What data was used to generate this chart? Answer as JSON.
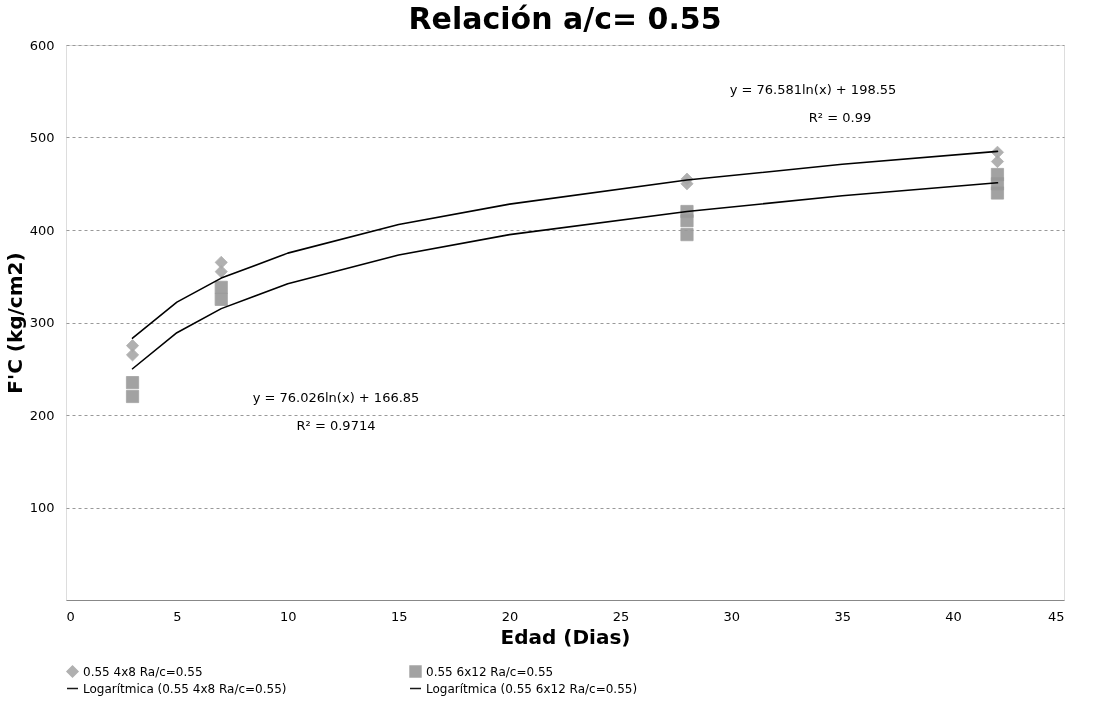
{
  "chart_data": {
    "type": "scatter",
    "title": "Relación a/c= 0.55",
    "xlabel": "Edad (Dias)",
    "ylabel": "F'C (kg/cm2)",
    "xlim": [
      0,
      45
    ],
    "xticks": [
      0,
      5,
      10,
      15,
      20,
      25,
      30,
      35,
      40,
      45
    ],
    "ylim": [
      0,
      600
    ],
    "yticks": [
      100,
      200,
      300,
      400,
      500,
      600
    ],
    "grid": "y",
    "legend": "bottom",
    "series": [
      {
        "name": "0.55 4x8 Ra/c=0.55",
        "marker": "diamond",
        "color": "#a8a8a8",
        "x": [
          3,
          3,
          7,
          7,
          28,
          28,
          42,
          42
        ],
        "values": [
          265,
          275,
          355,
          365,
          450,
          455,
          474,
          484
        ]
      },
      {
        "name": "0.55 6x12 Ra/c=0.55",
        "marker": "square",
        "color": "#999999",
        "x": [
          3,
          3,
          7,
          7,
          28,
          28,
          28,
          42,
          42,
          42
        ],
        "values": [
          220,
          235,
          325,
          338,
          395,
          410,
          420,
          440,
          450,
          460
        ]
      },
      {
        "name": "Logarítmica (0.55 4x8 Ra/c=0.55)",
        "type": "line",
        "marker": "none",
        "line_style": "solid",
        "color": "#000000",
        "x": [
          3,
          5,
          7,
          10,
          15,
          20,
          28,
          35,
          42
        ],
        "values": [
          283,
          322,
          348,
          375,
          406,
          428,
          454,
          471,
          485
        ]
      },
      {
        "name": "Logarítmica (0.55 6x12 Ra/c=0.55)",
        "type": "line",
        "marker": "none",
        "line_style": "solid",
        "color": "#000000",
        "x": [
          3,
          5,
          7,
          10,
          15,
          20,
          28,
          35,
          42
        ],
        "values": [
          250,
          289,
          315,
          342,
          373,
          395,
          420,
          437,
          451
        ]
      }
    ],
    "annotations": [
      "y = 76.581ln(x) + 198.55",
      "R² = 0.99",
      "y = 76.026ln(x) + 166.85",
      "R² = 0.9714"
    ]
  }
}
